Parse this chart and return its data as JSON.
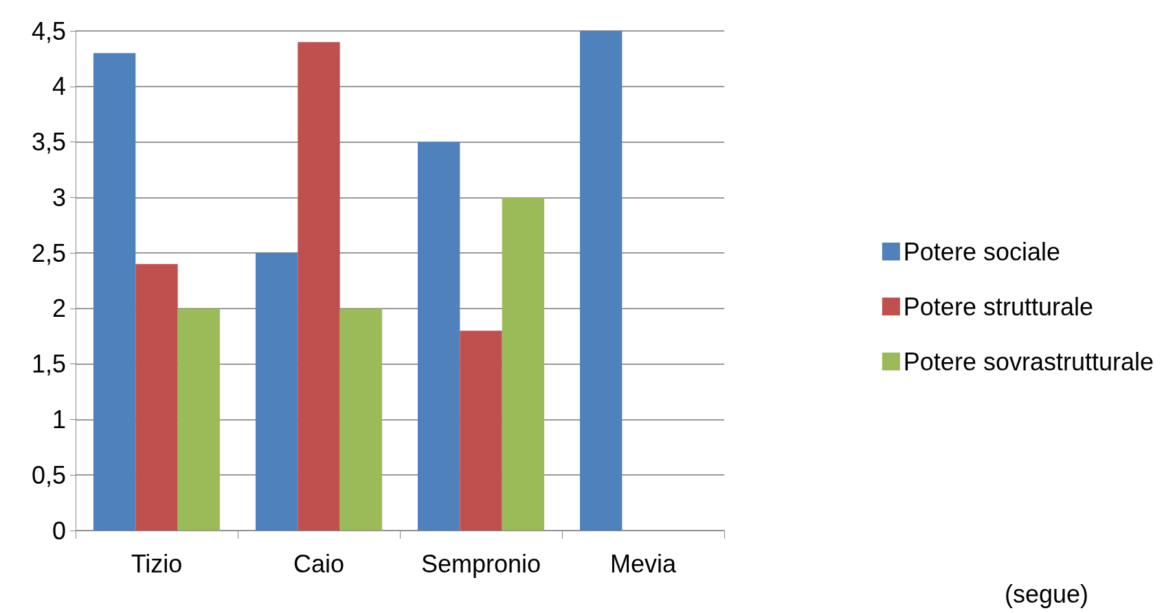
{
  "chart_data": {
    "type": "bar",
    "categories": [
      "Tizio",
      "Caio",
      "Sempronio",
      "Mevia"
    ],
    "series": [
      {
        "name": "Potere sociale",
        "color": "#4f81bd",
        "values": [
          4.3,
          2.5,
          3.5,
          4.5
        ]
      },
      {
        "name": "Potere strutturale",
        "color": "#c0504d",
        "values": [
          2.4,
          4.4,
          1.8,
          0
        ]
      },
      {
        "name": "Potere sovrastrutturale",
        "color": "#9bbb59",
        "values": [
          2,
          2,
          3,
          0
        ]
      }
    ],
    "ylim": [
      0,
      4.5
    ],
    "yticks": [
      0,
      {
        "value": 0.5,
        "label": "0,5"
      },
      1,
      {
        "value": 1.5,
        "label": "1,5"
      },
      2,
      {
        "value": 2.5,
        "label": "2,5"
      },
      3,
      {
        "value": 3.5,
        "label": "3,5"
      },
      4,
      {
        "value": 4.5,
        "label": "4,5"
      }
    ],
    "grid": "y",
    "legend": "right",
    "annotations": [
      "(segue)"
    ]
  }
}
